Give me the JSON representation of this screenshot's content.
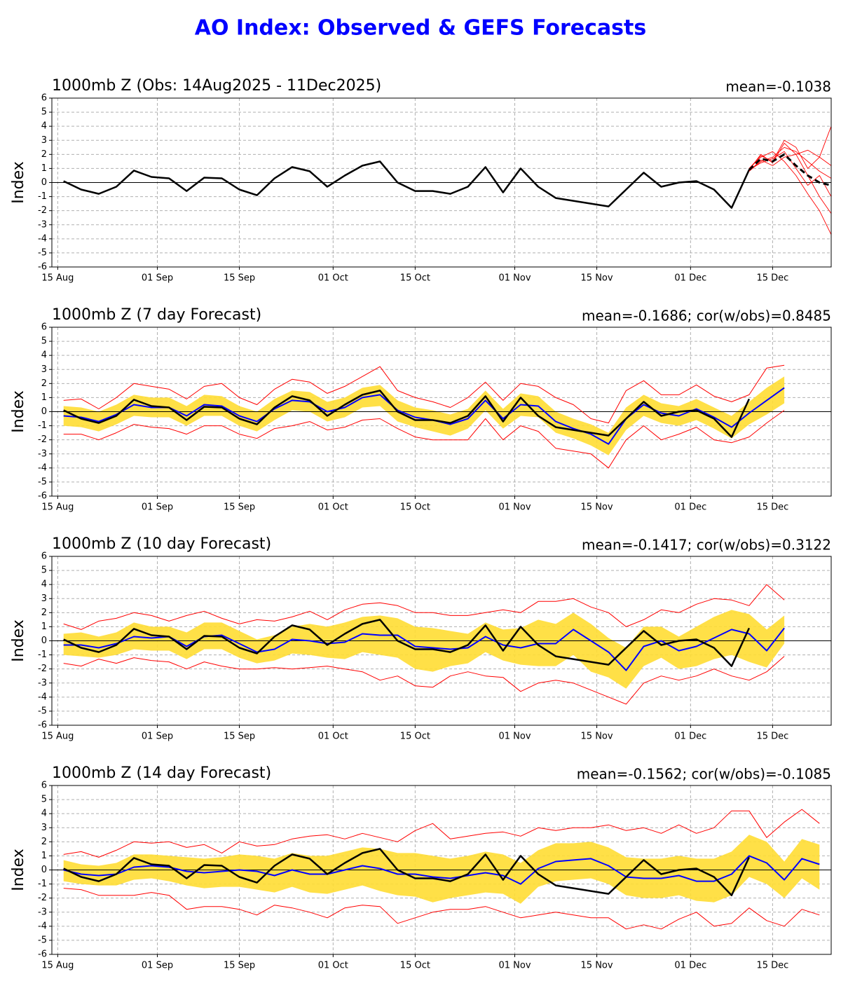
{
  "chart_data": {
    "type": "line",
    "title": "AO Index: Observed & GEFS Forecasts",
    "ylabel": "Index",
    "x": [
      "2025-08-16",
      "2025-08-19",
      "2025-08-22",
      "2025-08-25",
      "2025-08-28",
      "2025-08-31",
      "2025-09-03",
      "2025-09-06",
      "2025-09-09",
      "2025-09-12",
      "2025-09-15",
      "2025-09-18",
      "2025-09-21",
      "2025-09-24",
      "2025-09-27",
      "2025-09-30",
      "2025-10-03",
      "2025-10-06",
      "2025-10-09",
      "2025-10-12",
      "2025-10-15",
      "2025-10-18",
      "2025-10-21",
      "2025-10-24",
      "2025-10-27",
      "2025-10-30",
      "2025-11-02",
      "2025-11-05",
      "2025-11-08",
      "2025-11-11",
      "2025-11-14",
      "2025-11-17",
      "2025-11-20",
      "2025-11-23",
      "2025-11-26",
      "2025-11-29",
      "2025-12-02",
      "2025-12-05",
      "2025-12-08",
      "2025-12-11",
      "2025-12-14",
      "2025-12-17",
      "2025-12-20",
      "2025-12-23"
    ],
    "xlim": [
      "2025-08-14",
      "2025-12-25"
    ],
    "xticks": [
      {
        "value": "2025-08-15",
        "label": "15 Aug"
      },
      {
        "value": "2025-09-01",
        "label": "01 Sep"
      },
      {
        "value": "2025-09-15",
        "label": "15 Sep"
      },
      {
        "value": "2025-10-01",
        "label": "01 Oct"
      },
      {
        "value": "2025-10-15",
        "label": "15 Oct"
      },
      {
        "value": "2025-11-01",
        "label": "01 Nov"
      },
      {
        "value": "2025-11-15",
        "label": "15 Nov"
      },
      {
        "value": "2025-12-01",
        "label": "01 Dec"
      },
      {
        "value": "2025-12-15",
        "label": "15 Dec"
      }
    ],
    "ylim": [
      -6,
      6
    ],
    "yticks": [
      -6,
      -5,
      -4,
      -3,
      -2,
      -1,
      0,
      1,
      2,
      3,
      4,
      5,
      6
    ],
    "grid": true,
    "observed": {
      "color": "#000000",
      "values": [
        0.1,
        -0.5,
        -0.8,
        -0.3,
        0.85,
        0.4,
        0.3,
        -0.6,
        0.35,
        0.3,
        -0.5,
        -0.9,
        0.3,
        1.1,
        0.8,
        -0.3,
        0.5,
        1.2,
        1.5,
        0.0,
        -0.6,
        -0.6,
        -0.8,
        -0.3,
        1.1,
        -0.7,
        1.0,
        -0.3,
        -1.1,
        -1.3,
        -1.5,
        -1.7,
        -0.5,
        0.7,
        -0.3,
        0.0,
        0.1,
        -0.5,
        -1.8,
        0.9,
        null,
        null,
        null,
        null
      ]
    },
    "panels": [
      {
        "title": "1000mb Z (Obs: 14Aug2025 - 11Dec2025)",
        "stats": "mean=-0.1038",
        "ensemble": {
          "x": [
            "2025-12-11",
            "2025-12-13",
            "2025-12-15",
            "2025-12-17",
            "2025-12-19",
            "2025-12-21",
            "2025-12-23",
            "2025-12-25"
          ],
          "mean": {
            "color": "#000000",
            "values": [
              0.9,
              1.7,
              1.5,
              2.0,
              1.2,
              0.5,
              0.0,
              -0.2
            ]
          },
          "member_color": "#ff0000",
          "members": [
            [
              0.8,
              1.5,
              1.8,
              2.5,
              2.2,
              1.5,
              0.8,
              0.3
            ],
            [
              0.9,
              2.0,
              1.4,
              2.8,
              2.0,
              0.5,
              -1.0,
              -2.2
            ],
            [
              1.0,
              1.8,
              2.2,
              1.5,
              0.5,
              -0.8,
              -2.0,
              -3.7
            ],
            [
              0.8,
              1.6,
              1.2,
              1.8,
              2.0,
              2.3,
              1.8,
              1.2
            ],
            [
              0.9,
              1.4,
              1.7,
              2.2,
              1.0,
              -0.2,
              0.5,
              -1.0
            ],
            [
              1.0,
              1.9,
              1.5,
              3.0,
              2.5,
              1.0,
              1.8,
              4.0
            ]
          ]
        }
      },
      {
        "title": "1000mb Z (7 day Forecast)",
        "stats": "mean=-0.1686; cor(w/obs)=0.8485",
        "mean": {
          "color": "#0000ff",
          "values": [
            -0.3,
            -0.4,
            -0.7,
            -0.2,
            0.5,
            0.3,
            0.3,
            -0.3,
            0.5,
            0.4,
            -0.3,
            -0.7,
            0.2,
            0.8,
            0.7,
            0.0,
            0.3,
            1.0,
            1.2,
            0.1,
            -0.4,
            -0.6,
            -0.9,
            -0.5,
            0.8,
            -0.5,
            0.5,
            0.4,
            -0.7,
            -1.2,
            -1.6,
            -2.3,
            -0.5,
            0.5,
            -0.1,
            -0.3,
            0.2,
            -0.4,
            -1.1,
            -0.1,
            0.8,
            1.7,
            null,
            null
          ]
        },
        "band": {
          "color": "#ffdd33",
          "lower": [
            -1.0,
            -1.1,
            -1.4,
            -0.9,
            -0.3,
            -0.4,
            -0.4,
            -1.0,
            -0.3,
            -0.3,
            -1.0,
            -1.4,
            -0.6,
            0.1,
            0.0,
            -0.7,
            -0.4,
            0.3,
            0.4,
            -0.7,
            -1.1,
            -1.4,
            -1.7,
            -1.2,
            0.1,
            -1.2,
            -0.3,
            -0.4,
            -1.5,
            -1.9,
            -2.4,
            -3.1,
            -1.3,
            -0.3,
            -0.8,
            -1.0,
            -0.6,
            -1.2,
            -1.9,
            -0.9,
            -0.2,
            0.6,
            null,
            null
          ],
          "upper": [
            0.4,
            0.3,
            0.0,
            0.5,
            1.2,
            1.0,
            1.0,
            0.4,
            1.2,
            1.1,
            0.4,
            0.0,
            0.9,
            1.5,
            1.4,
            0.7,
            1.0,
            1.7,
            1.9,
            0.8,
            0.3,
            0.1,
            -0.2,
            0.2,
            1.5,
            0.2,
            1.3,
            1.1,
            0.0,
            -0.5,
            -0.9,
            -1.5,
            0.3,
            1.2,
            0.6,
            0.4,
            0.9,
            0.3,
            -0.3,
            0.7,
            1.7,
            2.5,
            null,
            null
          ]
        },
        "spread": {
          "color": "#ff0000",
          "min": [
            -1.6,
            -1.6,
            -2.0,
            -1.5,
            -0.9,
            -1.1,
            -1.2,
            -1.6,
            -1.0,
            -1.0,
            -1.6,
            -1.9,
            -1.2,
            -1.0,
            -0.7,
            -1.3,
            -1.1,
            -0.6,
            -0.5,
            -1.2,
            -1.8,
            -2.0,
            -2.0,
            -2.0,
            -0.5,
            -2.0,
            -1.0,
            -1.4,
            -2.6,
            -2.8,
            -3.0,
            -4.0,
            -2.0,
            -1.0,
            -2.0,
            -1.6,
            -1.1,
            -2.0,
            -2.2,
            -1.8,
            -0.8,
            0.1,
            null,
            null
          ],
          "max": [
            0.8,
            0.9,
            0.2,
            1.0,
            2.0,
            1.8,
            1.6,
            0.9,
            1.8,
            2.0,
            1.0,
            0.5,
            1.6,
            2.3,
            2.1,
            1.3,
            1.8,
            2.5,
            3.2,
            1.5,
            1.0,
            0.7,
            0.3,
            1.0,
            2.1,
            0.8,
            2.0,
            1.8,
            1.0,
            0.5,
            -0.5,
            -0.8,
            1.5,
            2.2,
            1.2,
            1.2,
            1.9,
            1.1,
            0.7,
            1.2,
            3.1,
            3.3,
            null,
            null
          ]
        }
      },
      {
        "title": "1000mb Z (10 day Forecast)",
        "stats": "mean=-0.1417; cor(w/obs)=0.3122",
        "mean": {
          "color": "#0000ff",
          "values": [
            -0.3,
            -0.3,
            -0.5,
            -0.2,
            0.3,
            0.2,
            0.3,
            -0.4,
            0.3,
            0.4,
            -0.2,
            -0.8,
            -0.6,
            0.1,
            0.0,
            -0.2,
            -0.1,
            0.5,
            0.4,
            0.4,
            -0.4,
            -0.5,
            -0.6,
            -0.5,
            0.3,
            -0.3,
            -0.5,
            -0.2,
            -0.2,
            0.8,
            0.0,
            -0.8,
            -2.1,
            -0.4,
            0.0,
            -0.7,
            -0.4,
            0.2,
            0.8,
            0.5,
            -0.7,
            0.9,
            null,
            null
          ]
        },
        "band": {
          "color": "#ffdd33",
          "lower": [
            -1.0,
            -1.1,
            -1.2,
            -1.0,
            -0.6,
            -0.7,
            -0.7,
            -1.3,
            -0.6,
            -0.6,
            -1.2,
            -1.6,
            -1.4,
            -0.9,
            -1.0,
            -1.2,
            -1.3,
            -0.8,
            -1.0,
            -1.2,
            -2.0,
            -2.2,
            -1.8,
            -1.6,
            -0.8,
            -1.4,
            -1.7,
            -1.8,
            -1.8,
            -1.0,
            -2.2,
            -2.6,
            -3.4,
            -1.8,
            -1.2,
            -2.0,
            -1.8,
            -1.3,
            -1.0,
            -1.5,
            -1.9,
            -0.2,
            null,
            null
          ],
          "upper": [
            0.5,
            0.6,
            0.3,
            0.6,
            1.3,
            1.0,
            1.0,
            0.6,
            1.3,
            1.3,
            0.7,
            0.1,
            0.4,
            1.0,
            1.2,
            1.0,
            1.3,
            1.7,
            1.8,
            1.6,
            1.0,
            0.9,
            0.7,
            0.5,
            1.3,
            0.8,
            0.9,
            1.5,
            1.2,
            2.0,
            1.2,
            0.2,
            -0.5,
            1.0,
            1.0,
            0.3,
            1.0,
            1.7,
            2.2,
            1.9,
            0.8,
            1.8,
            null,
            null
          ]
        },
        "spread": {
          "color": "#ff0000",
          "min": [
            -1.6,
            -1.8,
            -1.3,
            -1.6,
            -1.2,
            -1.4,
            -1.5,
            -2.0,
            -1.5,
            -1.8,
            -2.0,
            -2.0,
            -1.9,
            -2.0,
            -1.9,
            -1.8,
            -2.0,
            -2.2,
            -2.8,
            -2.5,
            -3.2,
            -3.3,
            -2.5,
            -2.2,
            -2.5,
            -2.6,
            -3.6,
            -3.0,
            -2.8,
            -3.0,
            -3.5,
            -4.0,
            -4.5,
            -3.0,
            -2.5,
            -2.8,
            -2.5,
            -2.0,
            -2.5,
            -2.8,
            -2.2,
            -1.1,
            null,
            null
          ],
          "max": [
            1.2,
            0.8,
            1.4,
            1.6,
            2.0,
            1.8,
            1.4,
            1.8,
            2.1,
            1.6,
            1.2,
            1.5,
            1.4,
            1.7,
            2.1,
            1.5,
            2.2,
            2.6,
            2.7,
            2.5,
            2.0,
            2.0,
            1.8,
            1.8,
            2.0,
            2.2,
            2.0,
            2.8,
            2.8,
            3.0,
            2.4,
            2.0,
            1.0,
            1.5,
            2.2,
            2.0,
            2.6,
            3.0,
            2.9,
            2.5,
            4.0,
            2.9,
            null,
            null
          ]
        }
      },
      {
        "title": "1000mb Z (14 day Forecast)",
        "stats": "mean=-0.1562; cor(w/obs)=-0.1085",
        "mean": {
          "color": "#0000ff",
          "values": [
            0.0,
            -0.3,
            -0.4,
            -0.3,
            0.2,
            0.3,
            0.2,
            -0.1,
            -0.2,
            -0.1,
            0.0,
            -0.1,
            -0.4,
            0.0,
            -0.3,
            -0.3,
            0.0,
            0.3,
            0.1,
            -0.3,
            -0.3,
            -0.5,
            -0.6,
            -0.4,
            -0.2,
            -0.4,
            -1.0,
            0.1,
            0.6,
            0.7,
            0.8,
            0.3,
            -0.5,
            -0.6,
            -0.6,
            -0.4,
            -0.8,
            -0.8,
            -0.3,
            1.0,
            0.5,
            -0.7,
            0.8,
            0.4
          ]
        },
        "band": {
          "color": "#ffdd33",
          "lower": [
            -0.8,
            -1.0,
            -1.1,
            -1.1,
            -0.7,
            -0.6,
            -0.8,
            -1.1,
            -1.3,
            -1.2,
            -1.2,
            -1.4,
            -1.6,
            -1.2,
            -1.6,
            -1.7,
            -1.4,
            -1.1,
            -1.5,
            -1.8,
            -1.9,
            -2.3,
            -2.0,
            -1.8,
            -1.6,
            -1.7,
            -2.4,
            -1.2,
            -0.8,
            -0.7,
            -0.6,
            -1.0,
            -1.8,
            -2.0,
            -2.0,
            -1.8,
            -2.2,
            -2.3,
            -1.8,
            -0.5,
            -1.0,
            -2.0,
            -0.6,
            -1.4
          ],
          "upper": [
            0.7,
            0.4,
            0.3,
            0.5,
            1.1,
            1.1,
            1.0,
            0.9,
            0.8,
            0.9,
            1.1,
            1.0,
            0.8,
            1.2,
            1.0,
            1.0,
            1.3,
            1.6,
            1.5,
            1.2,
            1.2,
            1.0,
            0.8,
            1.0,
            1.3,
            1.1,
            0.5,
            1.4,
            1.9,
            1.9,
            2.0,
            1.6,
            0.9,
            0.8,
            0.8,
            1.0,
            0.8,
            0.8,
            1.3,
            2.5,
            2.0,
            0.6,
            2.2,
            1.8
          ]
        },
        "spread": {
          "color": "#ff0000",
          "min": [
            -1.3,
            -1.4,
            -1.8,
            -1.8,
            -1.8,
            -1.6,
            -1.8,
            -2.8,
            -2.6,
            -2.6,
            -2.8,
            -3.2,
            -2.5,
            -2.7,
            -3.0,
            -3.4,
            -2.7,
            -2.5,
            -2.6,
            -3.8,
            -3.4,
            -3.0,
            -2.8,
            -2.8,
            -2.6,
            -3.0,
            -3.4,
            -3.2,
            -3.0,
            -3.2,
            -3.4,
            -3.4,
            -4.2,
            -3.9,
            -4.2,
            -3.5,
            -3.0,
            -4.0,
            -3.8,
            -2.7,
            -3.6,
            -4.0,
            -2.8,
            -3.2
          ],
          "max": [
            1.1,
            1.3,
            0.9,
            1.4,
            2.0,
            1.9,
            2.0,
            1.6,
            1.8,
            1.2,
            2.0,
            1.7,
            1.8,
            2.2,
            2.4,
            2.5,
            2.2,
            2.6,
            2.3,
            2.0,
            2.8,
            3.3,
            2.2,
            2.4,
            2.6,
            2.7,
            2.4,
            3.0,
            2.8,
            3.0,
            3.0,
            3.2,
            2.8,
            3.0,
            2.6,
            3.2,
            2.6,
            3.0,
            4.2,
            4.2,
            2.3,
            3.4,
            4.3,
            3.3
          ]
        }
      }
    ]
  }
}
